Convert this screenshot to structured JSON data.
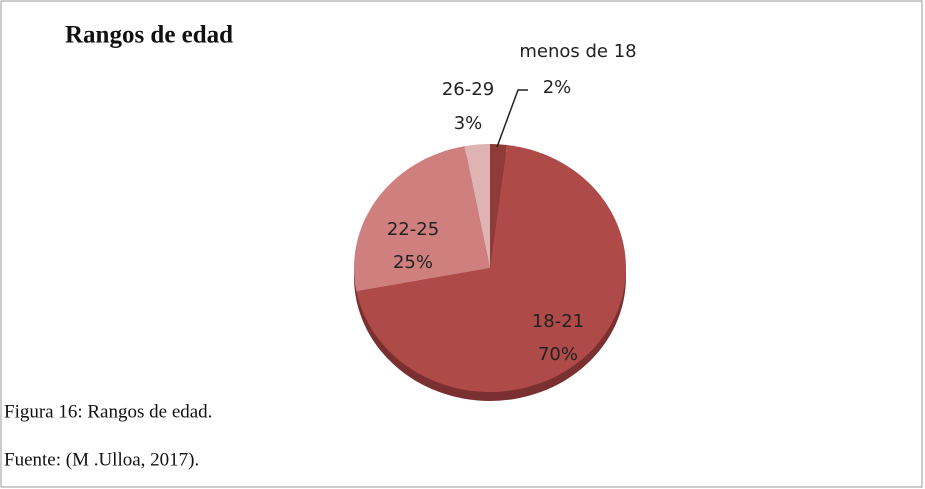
{
  "chart_data": {
    "type": "pie",
    "title": "Rangos de edad",
    "categories": [
      "menos de 18",
      "18-21",
      "22-25",
      "26-29"
    ],
    "values": [
      2,
      70,
      25,
      3
    ],
    "value_labels": [
      "2%",
      "70%",
      "25%",
      "3%"
    ],
    "colors": [
      "#8e3b3a",
      "#ae4a48",
      "#cf7f7e",
      "#dfb3b2"
    ]
  },
  "caption": "Figura 16: Rangos de edad.",
  "source": "Fuente: (M .Ulloa, 2017)."
}
